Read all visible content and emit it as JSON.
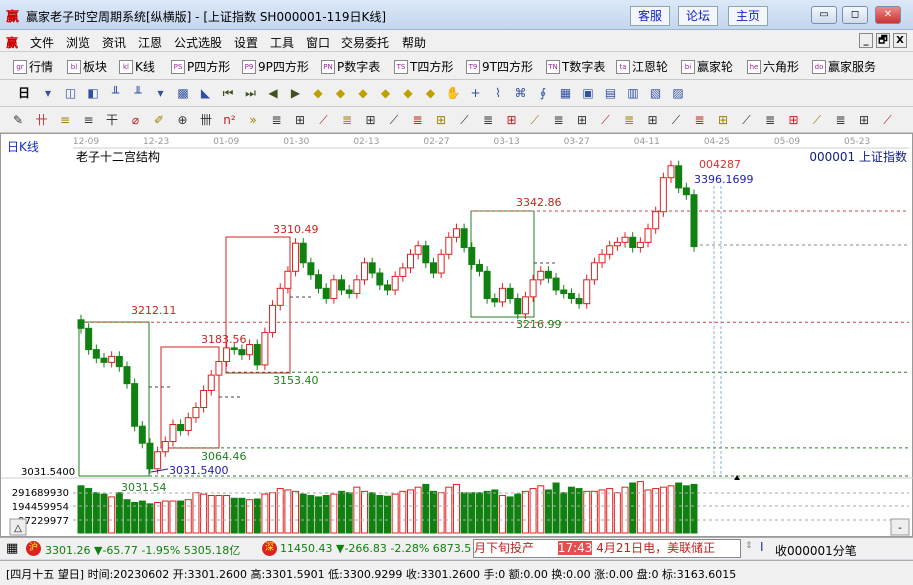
{
  "window": {
    "title": "赢家老子时空周期系统[纵横版] - [上证指数  SH000001-119日K线]",
    "logo": "赢",
    "links": [
      "客服",
      "论坛",
      "主页"
    ],
    "controls": [
      "▭",
      "◻",
      "✕"
    ]
  },
  "menu": {
    "items": [
      "文件",
      "浏览",
      "资讯",
      "江恩",
      "公式选股",
      "设置",
      "工具",
      "窗口",
      "交易委托",
      "帮助"
    ],
    "mdi": [
      "_",
      "🗗",
      "X"
    ]
  },
  "toolbar1": [
    {
      "icon": "grid-table",
      "label": "行情"
    },
    {
      "icon": "blocks",
      "label": "板块"
    },
    {
      "icon": "kline",
      "label": "K线"
    },
    {
      "icon": "PS",
      "label": "P四方形"
    },
    {
      "icon": "P9",
      "label": "9P四方形"
    },
    {
      "icon": "PN",
      "label": "P数字表"
    },
    {
      "icon": "TS",
      "label": "T四方形"
    },
    {
      "icon": "T9",
      "label": "9T四方形"
    },
    {
      "icon": "TN",
      "label": "T数字表"
    },
    {
      "icon": "target",
      "label": "江恩轮"
    },
    {
      "icon": "big",
      "label": "赢家轮"
    },
    {
      "icon": "hexagon",
      "label": "六角形"
    },
    {
      "icon": "dollar",
      "label": "赢家服务"
    }
  ],
  "toolbar2": {
    "period": "日",
    "icons": [
      "period-dropdown",
      "window-icon",
      "info-icon",
      "chart-3-icon",
      "chart-9-icon",
      "candle-dropdown",
      "kline-toggle-icon",
      "flag-icon",
      "first-icon",
      "last-icon",
      "prev-icon",
      "next-icon",
      "diamond-left-icon",
      "diamond-up-icon",
      "diamond-h-icon",
      "diamond-x-icon",
      "diamond-star-icon",
      "diamond-v-icon",
      "hand-icon",
      "crosshair-icon",
      "draw-icon",
      "node-icon",
      "line-icon",
      "calendar-icon",
      "calculator-icon",
      "notes-icon",
      "save-icon",
      "network-icon",
      "print-icon"
    ]
  },
  "toolbar3": {
    "icons": [
      "pen",
      "grid-ii",
      "gold-1",
      "gold-2",
      "fib",
      "spiral",
      "marker",
      "circle-grid",
      "hash",
      "n2",
      "more",
      "rect-line",
      "fan-red",
      "box-diag",
      "box-fan",
      "angle",
      "v-line",
      "grid-red",
      "grid-dark",
      "parallel",
      "bars",
      "percent-red",
      "percent",
      "percent-lines",
      "gold-coin",
      "gold-lines",
      "speed",
      "star-sq",
      "gold-sq",
      "angle-red",
      "angle-F",
      "angle-gold",
      "angle-wave",
      "angle-bar",
      "angle-z",
      "table",
      "taiji",
      "infinity"
    ]
  },
  "chart": {
    "period_label": "日K线",
    "structure_title": "老子十二宫结构",
    "symbol": "000001  上证指数",
    "dates": [
      "12-09",
      "12-23",
      "01-09",
      "01-30",
      "02-13",
      "02-27",
      "03-13",
      "03-27",
      "04-11",
      "04-25",
      "05-09",
      "05-23"
    ],
    "price_levels": [
      {
        "label": "3212.11",
        "price": 3212.11,
        "color": "#d02020"
      },
      {
        "label": "3183.56",
        "price": 3183.56,
        "color": "#d02020"
      },
      {
        "label": "3310.49",
        "price": 3310.49,
        "color": "#d02020"
      },
      {
        "label": "3153.40",
        "price": 3153.4,
        "color": "#208020"
      },
      {
        "label": "3064.46",
        "price": 3064.46,
        "color": "#208020"
      },
      {
        "label": "3031.54",
        "price": 3031.54,
        "color": "#208020"
      },
      {
        "label": "3342.86",
        "price": 3342.86,
        "color": "#d02020"
      },
      {
        "label": "3216.99",
        "price": 3216.99,
        "color": "#208020"
      }
    ],
    "low_marker": "3031.5400",
    "high_marker": "3396.1699",
    "high_marker_red": "004287",
    "left_axis_label": "3031.5400",
    "colors": {
      "up": "#e02020",
      "down": "#108010",
      "grid": "#888888",
      "marker": "#2020b0"
    }
  },
  "chart_data": {
    "type": "candlestick",
    "first_open": 3215,
    "close": [
      3205,
      3180,
      3170,
      3165,
      3172,
      3160,
      3140,
      3090,
      3070,
      3040,
      3060,
      3072,
      3092,
      3085,
      3100,
      3112,
      3132,
      3150,
      3166,
      3182,
      3180,
      3174,
      3186,
      3162,
      3200,
      3232,
      3252,
      3272,
      3305,
      3282,
      3268,
      3252,
      3240,
      3262,
      3250,
      3246,
      3262,
      3282,
      3270,
      3256,
      3250,
      3266,
      3276,
      3292,
      3302,
      3282,
      3270,
      3292,
      3312,
      3322,
      3300,
      3280,
      3272,
      3240,
      3236,
      3252,
      3240,
      3222,
      3242,
      3262,
      3272,
      3264,
      3250,
      3246,
      3240,
      3234,
      3262,
      3282,
      3292,
      3302,
      3306,
      3312,
      3300,
      3306,
      3322,
      3342,
      3382,
      3396,
      3370,
      3362,
      3301
    ],
    "volume": [
      340,
      320,
      290,
      280,
      260,
      290,
      240,
      220,
      230,
      210,
      220,
      230,
      230,
      230,
      240,
      290,
      280,
      270,
      270,
      270,
      250,
      250,
      240,
      245,
      280,
      290,
      320,
      310,
      300,
      280,
      270,
      260,
      270,
      280,
      300,
      290,
      330,
      300,
      290,
      270,
      265,
      280,
      300,
      310,
      330,
      350,
      300,
      290,
      330,
      350,
      290,
      290,
      290,
      300,
      310,
      270,
      260,
      280,
      300,
      320,
      340,
      310,
      360,
      290,
      330,
      320,
      300,
      300,
      310,
      320,
      290,
      330,
      360,
      370,
      310,
      320,
      330,
      340,
      360,
      340,
      350
    ],
    "volume_ticks": [
      "291689930",
      "194459954",
      "97229977"
    ]
  },
  "status1": {
    "sh_badge": "沪",
    "sh": "3301.26 ▼-65.77 -1.95% 5305.18亿",
    "sz_badge": "深",
    "sz": "11450.43 ▼-266.83 -2.28% 6873.5",
    "news1": "月下旬投产",
    "news_time": "17:43",
    "news2": "4月21日电，美联储正",
    "ticks": "收000001分笔"
  },
  "status2": {
    "text": "[四月十五  望日] 时间:20230602 开:3301.2600 高:3301.5901 低:3300.9299 收:3301.2600 手:0 额:0.00 换:0.00 涨:0.00 盘:0 标:3163.6015"
  }
}
